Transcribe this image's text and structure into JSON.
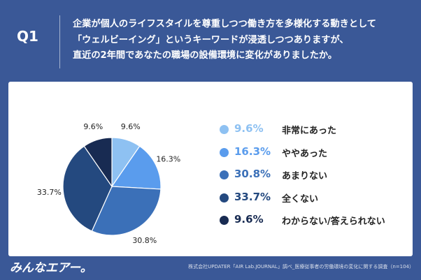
{
  "header": {
    "q_label": "Q1",
    "question_lines": [
      "企業が個人のライフスタイルを尊重しつつ働き方を多様化する動きとして",
      "「ウェルビーイング」というキーワードが浸透しつつありますが、",
      "直近の2年間であなたの職場の設備環境に変化がありましたか。"
    ]
  },
  "chart_data": {
    "type": "pie",
    "slices": [
      {
        "label": "非常にあった",
        "value": 9.6,
        "display": "9.6%",
        "color": "#8ec1f2"
      },
      {
        "label": "ややあった",
        "value": 16.3,
        "display": "16.3%",
        "color": "#5a9ced"
      },
      {
        "label": "あまりない",
        "value": 30.8,
        "display": "30.8%",
        "color": "#3b70b8"
      },
      {
        "label": "全くない",
        "value": 33.7,
        "display": "33.7%",
        "color": "#24497f"
      },
      {
        "label": "わからない/答えられない",
        "value": 9.6,
        "display": "9.6%",
        "color": "#182b52"
      }
    ],
    "legend_position": "right"
  },
  "footer": {
    "logo_text": "みんなエアー。",
    "source": "株式会社UPDATER「AIR Lab.JOURNAL」調べ_医療従事者の労働環境の変化に関する調査（n=104）"
  },
  "colors": {
    "background": "#3a5897",
    "card": "#ffffff"
  }
}
